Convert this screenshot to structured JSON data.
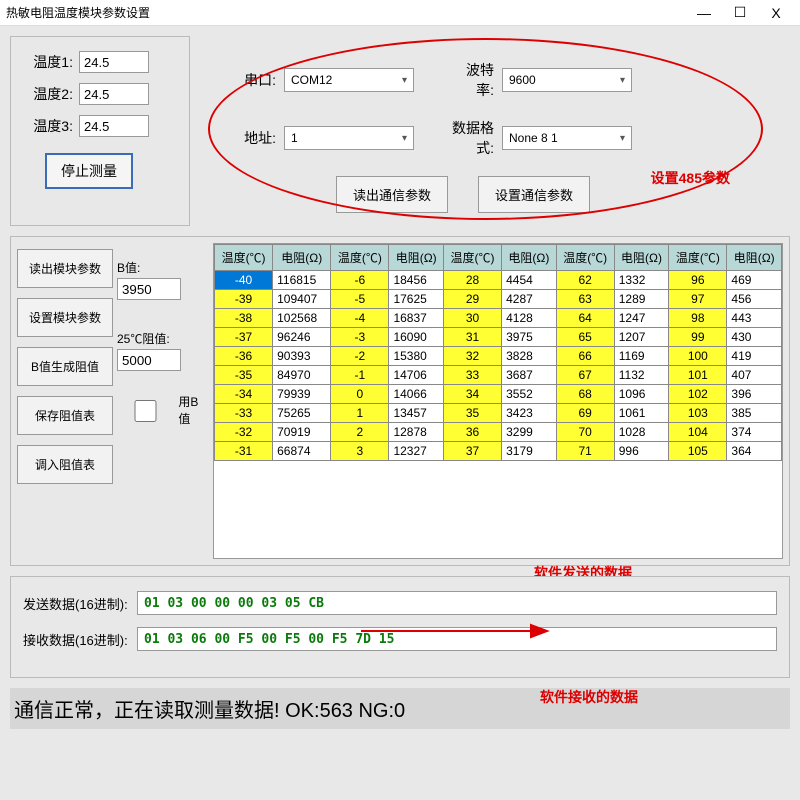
{
  "window": {
    "title": "热敏电阻温度模块参数设置"
  },
  "temps": {
    "label1": "温度1:",
    "val1": "24.5",
    "label2": "温度2:",
    "val2": "24.5",
    "label3": "温度3:",
    "val3": "24.5",
    "stop_btn": "停止测量"
  },
  "comm": {
    "port_label": "串口:",
    "port_val": "COM12",
    "baud_label": "波特率:",
    "baud_val": "9600",
    "addr_label": "地址:",
    "addr_val": "1",
    "fmt_label": "数据格式:",
    "fmt_val": "None 8 1",
    "read_btn": "读出通信参数",
    "set_btn": "设置通信参数",
    "anno": "设置485参数"
  },
  "module": {
    "read_btn": "读出模块参数",
    "set_btn": "设置模块参数",
    "gen_btn": "B值生成阻值",
    "save_btn": "保存阻值表",
    "load_btn": "调入阻值表",
    "bvalue_label": "B值:",
    "bvalue": "3950",
    "r25_label": "25℃阻值:",
    "r25": "5000",
    "useB_label": "用B值"
  },
  "table": {
    "headers": [
      "温度(℃)",
      "电阻(Ω)",
      "温度(℃)",
      "电阻(Ω)",
      "温度(℃)",
      "电阻(Ω)",
      "温度(℃)",
      "电阻(Ω)",
      "温度(℃)",
      "电阻(Ω)"
    ],
    "rows": [
      [
        "-40",
        "116815",
        "-6",
        "18456",
        "28",
        "4454",
        "62",
        "1332",
        "96",
        "469"
      ],
      [
        "-39",
        "109407",
        "-5",
        "17625",
        "29",
        "4287",
        "63",
        "1289",
        "97",
        "456"
      ],
      [
        "-38",
        "102568",
        "-4",
        "16837",
        "30",
        "4128",
        "64",
        "1247",
        "98",
        "443"
      ],
      [
        "-37",
        "96246",
        "-3",
        "16090",
        "31",
        "3975",
        "65",
        "1207",
        "99",
        "430"
      ],
      [
        "-36",
        "90393",
        "-2",
        "15380",
        "32",
        "3828",
        "66",
        "1169",
        "100",
        "419"
      ],
      [
        "-35",
        "84970",
        "-1",
        "14706",
        "33",
        "3687",
        "67",
        "1132",
        "101",
        "407"
      ],
      [
        "-34",
        "79939",
        "0",
        "14066",
        "34",
        "3552",
        "68",
        "1096",
        "102",
        "396"
      ],
      [
        "-33",
        "75265",
        "1",
        "13457",
        "35",
        "3423",
        "69",
        "1061",
        "103",
        "385"
      ],
      [
        "-32",
        "70919",
        "2",
        "12878",
        "36",
        "3299",
        "70",
        "1028",
        "104",
        "374"
      ],
      [
        "-31",
        "66874",
        "3",
        "12327",
        "37",
        "3179",
        "71",
        "996",
        "105",
        "364"
      ]
    ],
    "selected_cell": [
      0,
      0
    ],
    "temp_col_color": "#ffff33",
    "header_bg": "#b8d8d8",
    "selected_bg": "#0078d7"
  },
  "anno": {
    "send_arrow": "软件发送的数据",
    "recv_arrow": "软件接收的数据"
  },
  "hex": {
    "send_label": "发送数据(16进制):",
    "send_val": "01 03 00 00 00 03 05 CB",
    "recv_label": "接收数据(16进制):",
    "recv_val": "01 03 06 00 F5 00 F5 00 F5 7D 15"
  },
  "status": "通信正常，正在读取测量数据!  OK:563  NG:0"
}
